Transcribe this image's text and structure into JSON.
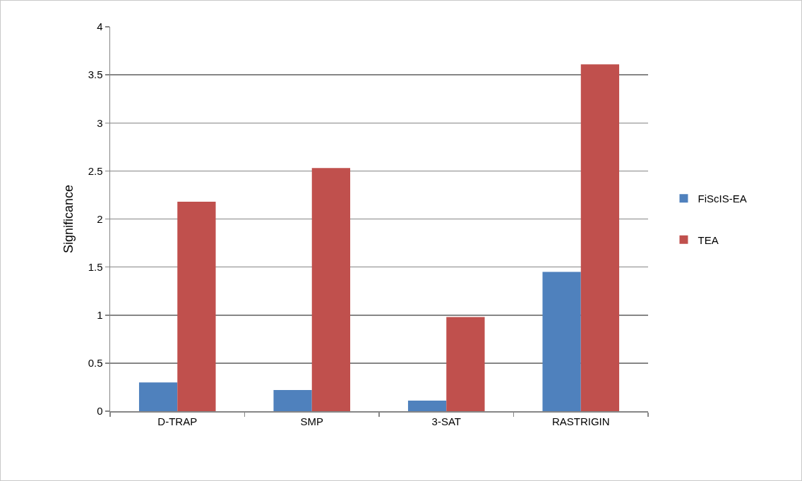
{
  "chart_data": {
    "type": "bar",
    "ylabel": "Significance",
    "categories": [
      "D-TRAP",
      "SMP",
      "3-SAT",
      "RASTRIGIN"
    ],
    "series": [
      {
        "name": "FiScIS-EA",
        "color": "#4f81bd",
        "values": [
          0.3,
          0.22,
          0.11,
          1.45
        ]
      },
      {
        "name": "TEA",
        "color": "#c0504d",
        "values": [
          2.18,
          2.53,
          0.98,
          3.61
        ]
      }
    ],
    "ylim": [
      0,
      4
    ],
    "yticks": [
      0,
      {
        "value": 0.5,
        "label": "0.5"
      },
      1,
      {
        "value": 1.5,
        "label": "1.5"
      },
      2,
      {
        "value": 2.5,
        "label": "2.5"
      },
      3,
      {
        "value": 3.5,
        "label": "3.5"
      },
      4
    ],
    "grid": "y",
    "legend": "right"
  }
}
